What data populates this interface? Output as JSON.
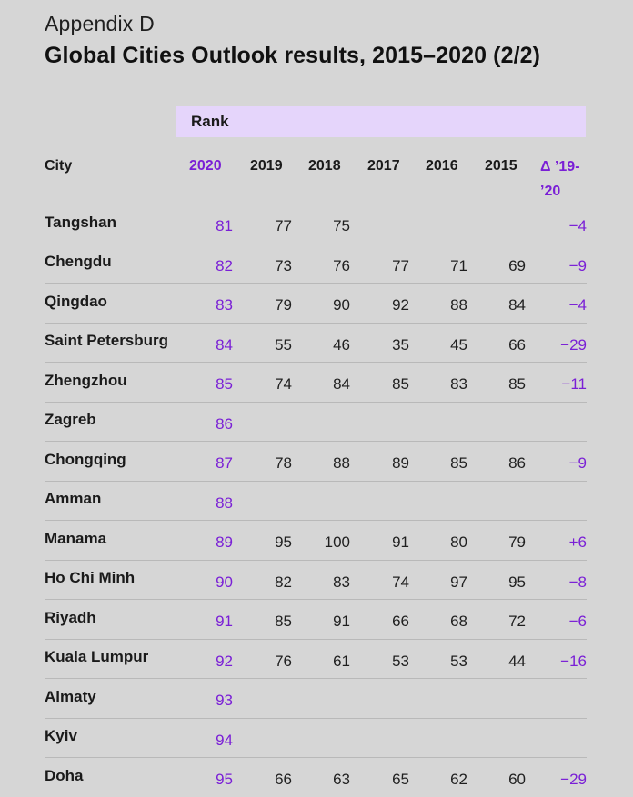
{
  "kicker": "Appendix D",
  "title": "Global Cities Outlook results, 2015–2020 (2/2)",
  "rank_band_label": "Rank",
  "headers": {
    "city": "City",
    "y2020": "2020",
    "y2019": "2019",
    "y2018": "2018",
    "y2017": "2017",
    "y2016": "2016",
    "y2015": "2015",
    "delta_line1": "Δ ’19-",
    "delta_line2": "’20"
  },
  "accent_color": "#7a1fd6",
  "band_color": "#e5d5fb",
  "rows": [
    {
      "city": "Tangshan",
      "r2020": "81",
      "r2019": "77",
      "r2018": "75",
      "r2017": "",
      "r2016": "",
      "r2015": "",
      "delta": "−4"
    },
    {
      "city": "Chengdu",
      "r2020": "82",
      "r2019": "73",
      "r2018": "76",
      "r2017": "77",
      "r2016": "71",
      "r2015": "69",
      "delta": "−9"
    },
    {
      "city": "Qingdao",
      "r2020": "83",
      "r2019": "79",
      "r2018": "90",
      "r2017": "92",
      "r2016": "88",
      "r2015": "84",
      "delta": "−4"
    },
    {
      "city": "Saint Petersburg",
      "r2020": "84",
      "r2019": "55",
      "r2018": "46",
      "r2017": "35",
      "r2016": "45",
      "r2015": "66",
      "delta": "−29"
    },
    {
      "city": "Zhengzhou",
      "r2020": "85",
      "r2019": "74",
      "r2018": "84",
      "r2017": "85",
      "r2016": "83",
      "r2015": "85",
      "delta": "−11"
    },
    {
      "city": "Zagreb",
      "r2020": "86",
      "r2019": "",
      "r2018": "",
      "r2017": "",
      "r2016": "",
      "r2015": "",
      "delta": ""
    },
    {
      "city": "Chongqing",
      "r2020": "87",
      "r2019": "78",
      "r2018": "88",
      "r2017": "89",
      "r2016": "85",
      "r2015": "86",
      "delta": "−9"
    },
    {
      "city": "Amman",
      "r2020": "88",
      "r2019": "",
      "r2018": "",
      "r2017": "",
      "r2016": "",
      "r2015": "",
      "delta": ""
    },
    {
      "city": "Manama",
      "r2020": "89",
      "r2019": "95",
      "r2018": "100",
      "r2017": "91",
      "r2016": "80",
      "r2015": "79",
      "delta": "+6"
    },
    {
      "city": "Ho Chi Minh",
      "r2020": "90",
      "r2019": "82",
      "r2018": "83",
      "r2017": "74",
      "r2016": "97",
      "r2015": "95",
      "delta": "−8"
    },
    {
      "city": "Riyadh",
      "r2020": "91",
      "r2019": "85",
      "r2018": "91",
      "r2017": "66",
      "r2016": "68",
      "r2015": "72",
      "delta": "−6"
    },
    {
      "city": "Kuala Lumpur",
      "r2020": "92",
      "r2019": "76",
      "r2018": "61",
      "r2017": "53",
      "r2016": "53",
      "r2015": "44",
      "delta": "−16"
    },
    {
      "city": "Almaty",
      "r2020": "93",
      "r2019": "",
      "r2018": "",
      "r2017": "",
      "r2016": "",
      "r2015": "",
      "delta": ""
    },
    {
      "city": "Kyiv",
      "r2020": "94",
      "r2019": "",
      "r2018": "",
      "r2017": "",
      "r2016": "",
      "r2015": "",
      "delta": ""
    },
    {
      "city": "Doha",
      "r2020": "95",
      "r2019": "66",
      "r2018": "63",
      "r2017": "65",
      "r2016": "62",
      "r2015": "60",
      "delta": "−29"
    }
  ]
}
